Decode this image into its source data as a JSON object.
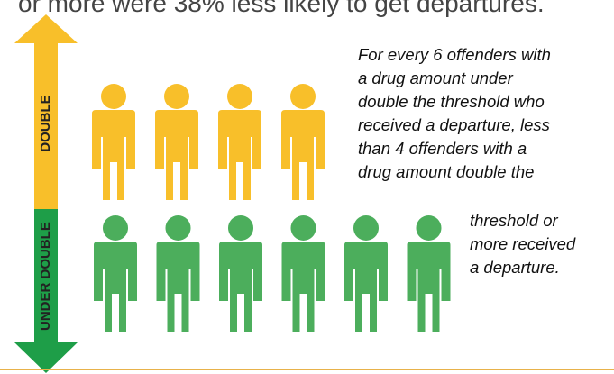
{
  "headline": "or more were 38% less likely to get departures.",
  "axis": {
    "double_label": "DOUBLE",
    "under_double_label": "UNDER DOUBLE",
    "double_color": "#f8bf2a",
    "under_double_color": "#1e9e48"
  },
  "groups": {
    "double": {
      "count": 4,
      "color": "#f8bf2a"
    },
    "under_double": {
      "count": 6,
      "color": "#4cae5c"
    }
  },
  "caption_lines_top": [
    "For every 6 offenders with",
    "a drug amount under",
    "double the threshold who",
    "received a departure, less",
    "than 4 offenders with a",
    "drug amount double the"
  ],
  "caption_lines_bottom": [
    "threshold or",
    "more received",
    "a departure."
  ]
}
